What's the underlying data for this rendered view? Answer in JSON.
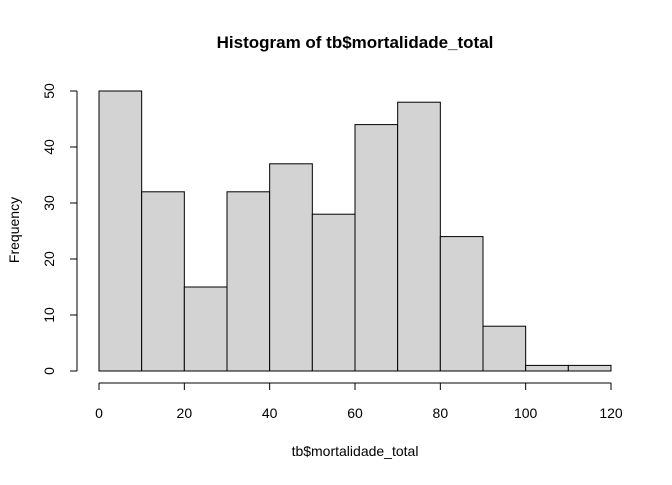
{
  "chart_data": {
    "type": "bar",
    "title": "Histogram of tb$mortalidade_total",
    "xlabel": "tb$mortalidade_total",
    "ylabel": "Frequency",
    "bins": [
      {
        "x0": 0,
        "x1": 10,
        "count": 50
      },
      {
        "x0": 10,
        "x1": 20,
        "count": 32
      },
      {
        "x0": 20,
        "x1": 30,
        "count": 15
      },
      {
        "x0": 30,
        "x1": 40,
        "count": 32
      },
      {
        "x0": 40,
        "x1": 50,
        "count": 37
      },
      {
        "x0": 50,
        "x1": 60,
        "count": 28
      },
      {
        "x0": 60,
        "x1": 70,
        "count": 44
      },
      {
        "x0": 70,
        "x1": 80,
        "count": 48
      },
      {
        "x0": 80,
        "x1": 90,
        "count": 24
      },
      {
        "x0": 90,
        "x1": 100,
        "count": 8
      },
      {
        "x0": 100,
        "x1": 110,
        "count": 1
      },
      {
        "x0": 110,
        "x1": 120,
        "count": 1
      }
    ],
    "x_ticks": [
      0,
      20,
      40,
      60,
      80,
      100,
      120
    ],
    "y_ticks": [
      0,
      10,
      20,
      30,
      40,
      50
    ],
    "xlim": [
      0,
      120
    ],
    "ylim": [
      0,
      50
    ],
    "grid": false,
    "bar_fill": "#d3d3d3",
    "bar_stroke": "#000000"
  }
}
